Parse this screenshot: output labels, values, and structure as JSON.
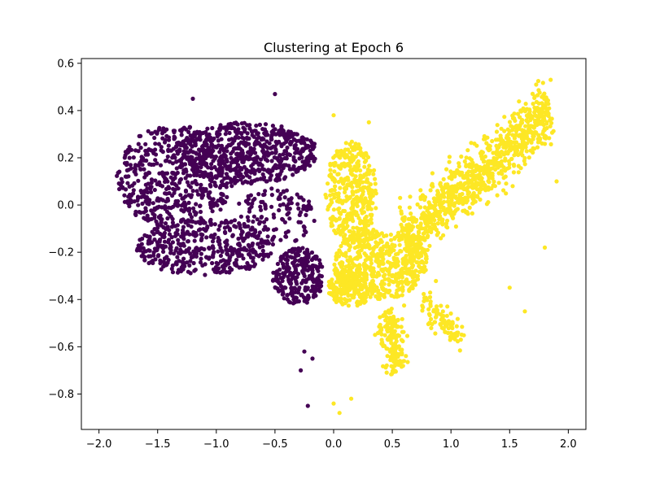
{
  "chart_data": {
    "type": "scatter",
    "title": "Clustering at Epoch 6",
    "xlabel": "",
    "ylabel": "",
    "xlim": [
      -2.15,
      2.15
    ],
    "ylim": [
      -0.95,
      0.62
    ],
    "grid": false,
    "legend": "none",
    "x_ticks": [
      -2.0,
      -1.5,
      -1.0,
      -0.5,
      0.0,
      0.5,
      1.0,
      1.5,
      2.0
    ],
    "x_tick_labels": [
      "−2.0",
      "−1.5",
      "−1.0",
      "−0.5",
      "0.0",
      "0.5",
      "1.0",
      "1.5",
      "2.0"
    ],
    "y_ticks": [
      -0.8,
      -0.6,
      -0.4,
      -0.2,
      0.0,
      0.2,
      0.4,
      0.6
    ],
    "y_tick_labels": [
      "−0.8",
      "−0.6",
      "−0.4",
      "−0.2",
      "0.0",
      "0.2",
      "0.4",
      "0.6"
    ],
    "series": [
      {
        "color": "#440154",
        "regions": [
          {
            "shape": "ellipse",
            "cx": -1.35,
            "cy": 0.12,
            "rx": 0.5,
            "ry": 0.22,
            "n": 520
          },
          {
            "shape": "ellipse",
            "cx": -0.75,
            "cy": 0.22,
            "rx": 0.62,
            "ry": 0.13,
            "n": 620
          },
          {
            "shape": "ellipse",
            "cx": -1.1,
            "cy": -0.18,
            "rx": 0.58,
            "ry": 0.12,
            "n": 420
          },
          {
            "shape": "ellipse",
            "cx": -0.3,
            "cy": -0.3,
            "rx": 0.22,
            "ry": 0.12,
            "n": 260
          },
          {
            "shape": "ellipse",
            "cx": -0.5,
            "cy": -0.05,
            "rx": 0.35,
            "ry": 0.12,
            "n": 120
          }
        ],
        "points": [
          {
            "x": -0.5,
            "y": 0.47
          },
          {
            "x": -1.2,
            "y": 0.45
          },
          {
            "x": -0.25,
            "y": -0.62
          },
          {
            "x": -0.18,
            "y": -0.65
          },
          {
            "x": -0.28,
            "y": -0.7
          },
          {
            "x": -0.22,
            "y": -0.85
          }
        ]
      },
      {
        "color": "#fde725",
        "regions": [
          {
            "shape": "ellipse",
            "cx": 0.15,
            "cy": 0.05,
            "rx": 0.22,
            "ry": 0.22,
            "n": 380
          },
          {
            "shape": "ellipse",
            "cx": 0.4,
            "cy": -0.25,
            "rx": 0.4,
            "ry": 0.15,
            "n": 520
          },
          {
            "shape": "segment",
            "x1": 0.6,
            "y1": -0.15,
            "x2": 1.85,
            "y2": 0.4,
            "width": 0.12,
            "n": 900
          },
          {
            "shape": "segment",
            "x1": 0.45,
            "y1": -0.45,
            "x2": 0.55,
            "y2": -0.7,
            "width": 0.09,
            "n": 160
          },
          {
            "shape": "segment",
            "x1": 0.75,
            "y1": -0.4,
            "x2": 1.1,
            "y2": -0.58,
            "width": 0.07,
            "n": 90
          },
          {
            "shape": "ellipse",
            "cx": 0.15,
            "cy": -0.35,
            "rx": 0.2,
            "ry": 0.08,
            "n": 200
          }
        ],
        "points": [
          {
            "x": 1.85,
            "y": 0.53
          },
          {
            "x": 0.0,
            "y": 0.38
          },
          {
            "x": 0.3,
            "y": 0.35
          },
          {
            "x": 0.0,
            "y": -0.84
          },
          {
            "x": 0.05,
            "y": -0.88
          },
          {
            "x": 0.15,
            "y": -0.82
          },
          {
            "x": 1.63,
            "y": -0.45
          },
          {
            "x": 1.5,
            "y": -0.35
          },
          {
            "x": 1.8,
            "y": -0.18
          },
          {
            "x": 1.9,
            "y": 0.1
          }
        ]
      }
    ]
  }
}
